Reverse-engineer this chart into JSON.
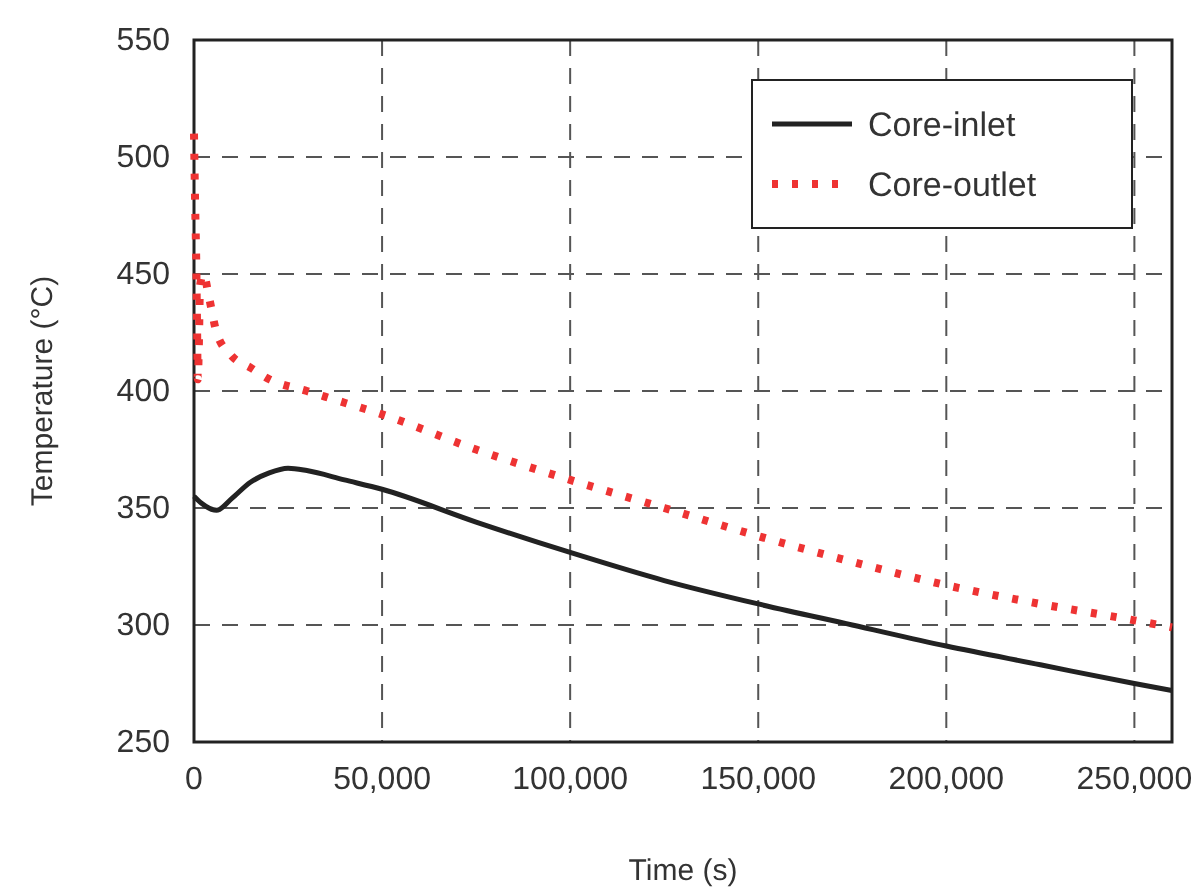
{
  "chart_data": {
    "type": "line",
    "xlabel": "Time (s)",
    "ylabel": "Temperature (°C)",
    "xlim": [
      0,
      260000
    ],
    "ylim": [
      250,
      550
    ],
    "xticks": [
      0,
      {
        "value": 50000,
        "label": "50,000"
      },
      {
        "value": 100000,
        "label": "100,000"
      },
      {
        "value": 150000,
        "label": "150,000"
      },
      {
        "value": 200000,
        "label": "200,000"
      },
      {
        "value": 250000,
        "label": "250,000"
      }
    ],
    "yticks": [
      250,
      300,
      350,
      400,
      450,
      500,
      550
    ],
    "grid": true,
    "legend": "top right",
    "series": [
      {
        "name": "Core-inlet",
        "color": "#222222",
        "line_style": "solid",
        "x": [
          0,
          2000,
          6000,
          10000,
          15000,
          20000,
          25000,
          30000,
          40000,
          50000,
          75000,
          100000,
          125000,
          150000,
          175000,
          200000,
          225000,
          250000,
          260000
        ],
        "values": [
          355,
          352,
          349,
          354,
          361,
          365,
          367,
          366,
          362,
          358,
          344,
          331,
          319,
          309,
          300,
          291,
          283,
          275,
          272
        ]
      },
      {
        "name": "Core-outlet",
        "color": "#ee3333",
        "line_style": "dotted",
        "x": [
          0,
          300,
          600,
          800,
          1000,
          1300,
          1600,
          2500,
          4000,
          6000,
          10000,
          15000,
          20000,
          30000,
          40000,
          50000,
          75000,
          100000,
          125000,
          150000,
          175000,
          200000,
          225000,
          250000,
          260000
        ],
        "values": [
          510,
          480,
          455,
          430,
          405,
          420,
          445,
          450,
          440,
          425,
          415,
          410,
          405,
          400,
          395,
          390,
          375,
          362,
          350,
          338,
          327,
          317,
          309,
          302,
          299
        ]
      }
    ]
  }
}
